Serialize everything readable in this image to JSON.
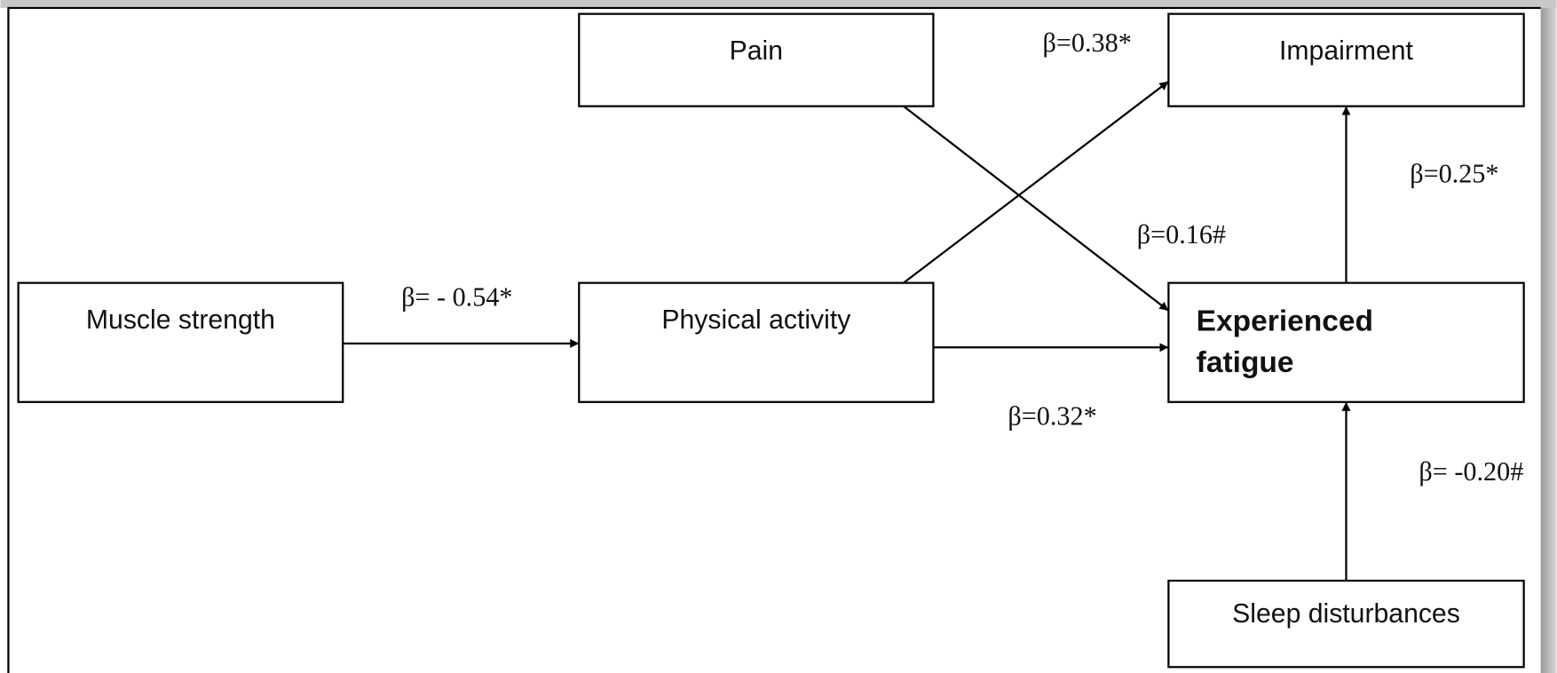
{
  "nodes": [
    {
      "label": [
        "Pain"
      ]
    },
    {
      "label": [
        "Impairment"
      ]
    },
    {
      "label": [
        "Muscle strength"
      ]
    },
    {
      "label": [
        "Physical activity"
      ]
    },
    {
      "label": [
        "Experienced",
        "fatigue"
      ]
    },
    {
      "label": [
        "Sleep disturbances"
      ]
    }
  ],
  "edges": [
    {
      "from": "Muscle strength",
      "to": "Physical activity",
      "label": "β= - 0.54*"
    },
    {
      "from": "Physical activity",
      "to": "Impairment",
      "label": "β=0.38*"
    },
    {
      "from": "Pain",
      "to": "Experienced fatigue",
      "label": "β=0.16#"
    },
    {
      "from": "Physical activity",
      "to": "Experienced fatigue",
      "label": "β=0.32*"
    },
    {
      "from": "Experienced fatigue",
      "to": "Impairment",
      "label": "β=0.25*"
    },
    {
      "from": "Sleep disturbances",
      "to": "Experienced fatigue",
      "label": "β= -0.20#"
    }
  ]
}
